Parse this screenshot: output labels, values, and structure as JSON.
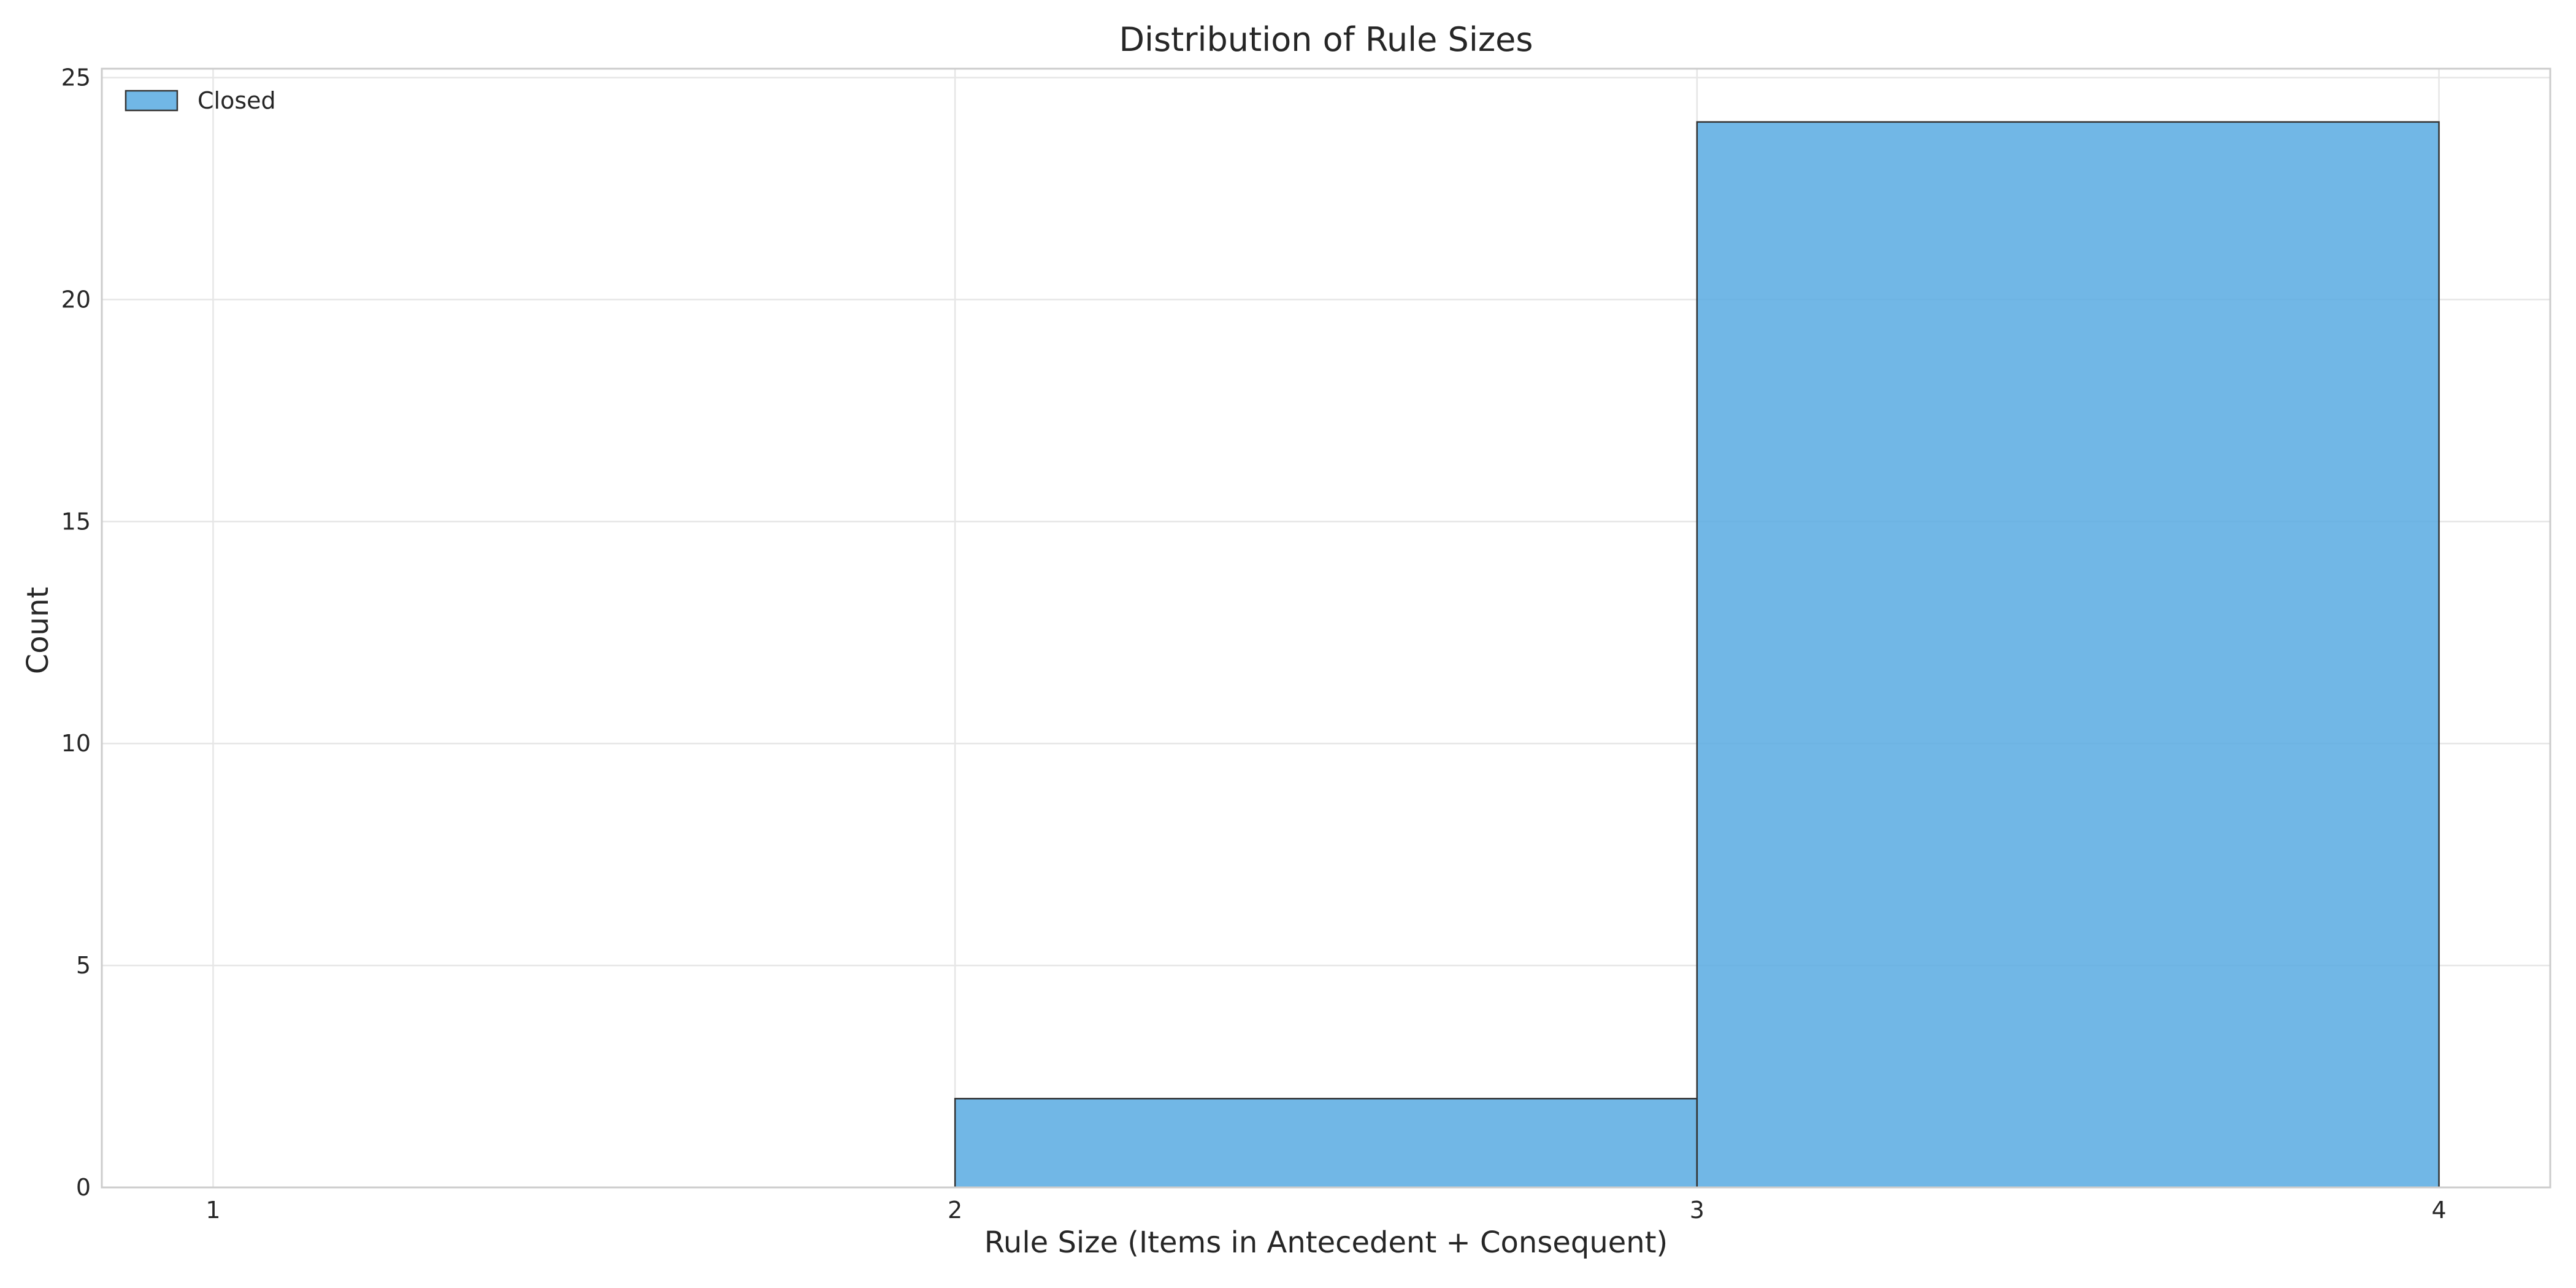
{
  "chart_data": {
    "type": "bar",
    "title": "Distribution of Rule Sizes",
    "xlabel": "Rule Size (Items in Antecedent + Consequent)",
    "ylabel": "Count",
    "xlim": [
      0.85,
      4.15
    ],
    "ylim": [
      0,
      25.2
    ],
    "xticks": [
      1,
      2,
      3,
      4
    ],
    "yticks": [
      0,
      5,
      10,
      15,
      20,
      25
    ],
    "grid": true,
    "legend_position": "top-left",
    "series": [
      {
        "name": "Closed",
        "color": "#5DADE2",
        "bins": [
          {
            "x0": 2,
            "x1": 3,
            "value": 2
          },
          {
            "x0": 3,
            "x1": 4,
            "value": 24
          }
        ]
      }
    ]
  }
}
